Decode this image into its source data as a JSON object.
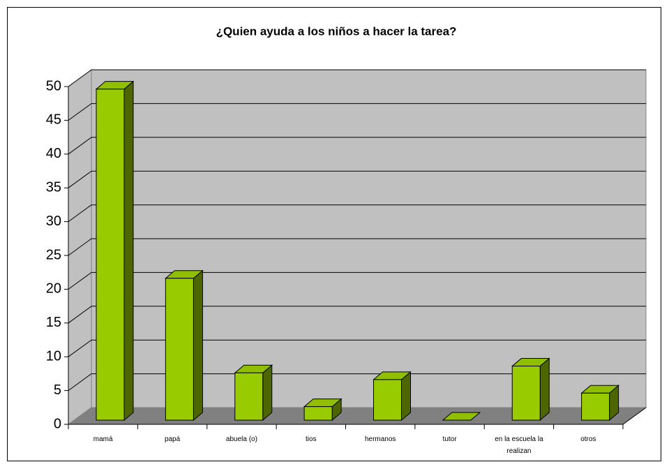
{
  "chart_data": {
    "type": "bar3d",
    "title": "¿Quien ayuda a los niños a hacer la tarea?",
    "categories": [
      "mamá",
      "papá",
      "abuela (o)",
      "tios",
      "hermanos",
      "tutor",
      "en la escuela la realizan",
      "otros"
    ],
    "values": [
      49,
      21,
      7,
      2,
      6,
      0,
      8,
      4
    ],
    "color": "#99cc00",
    "ylim": [
      0,
      50
    ],
    "yticks": [
      0,
      5,
      10,
      15,
      20,
      25,
      30,
      35,
      40,
      45,
      50
    ],
    "grid": true
  }
}
